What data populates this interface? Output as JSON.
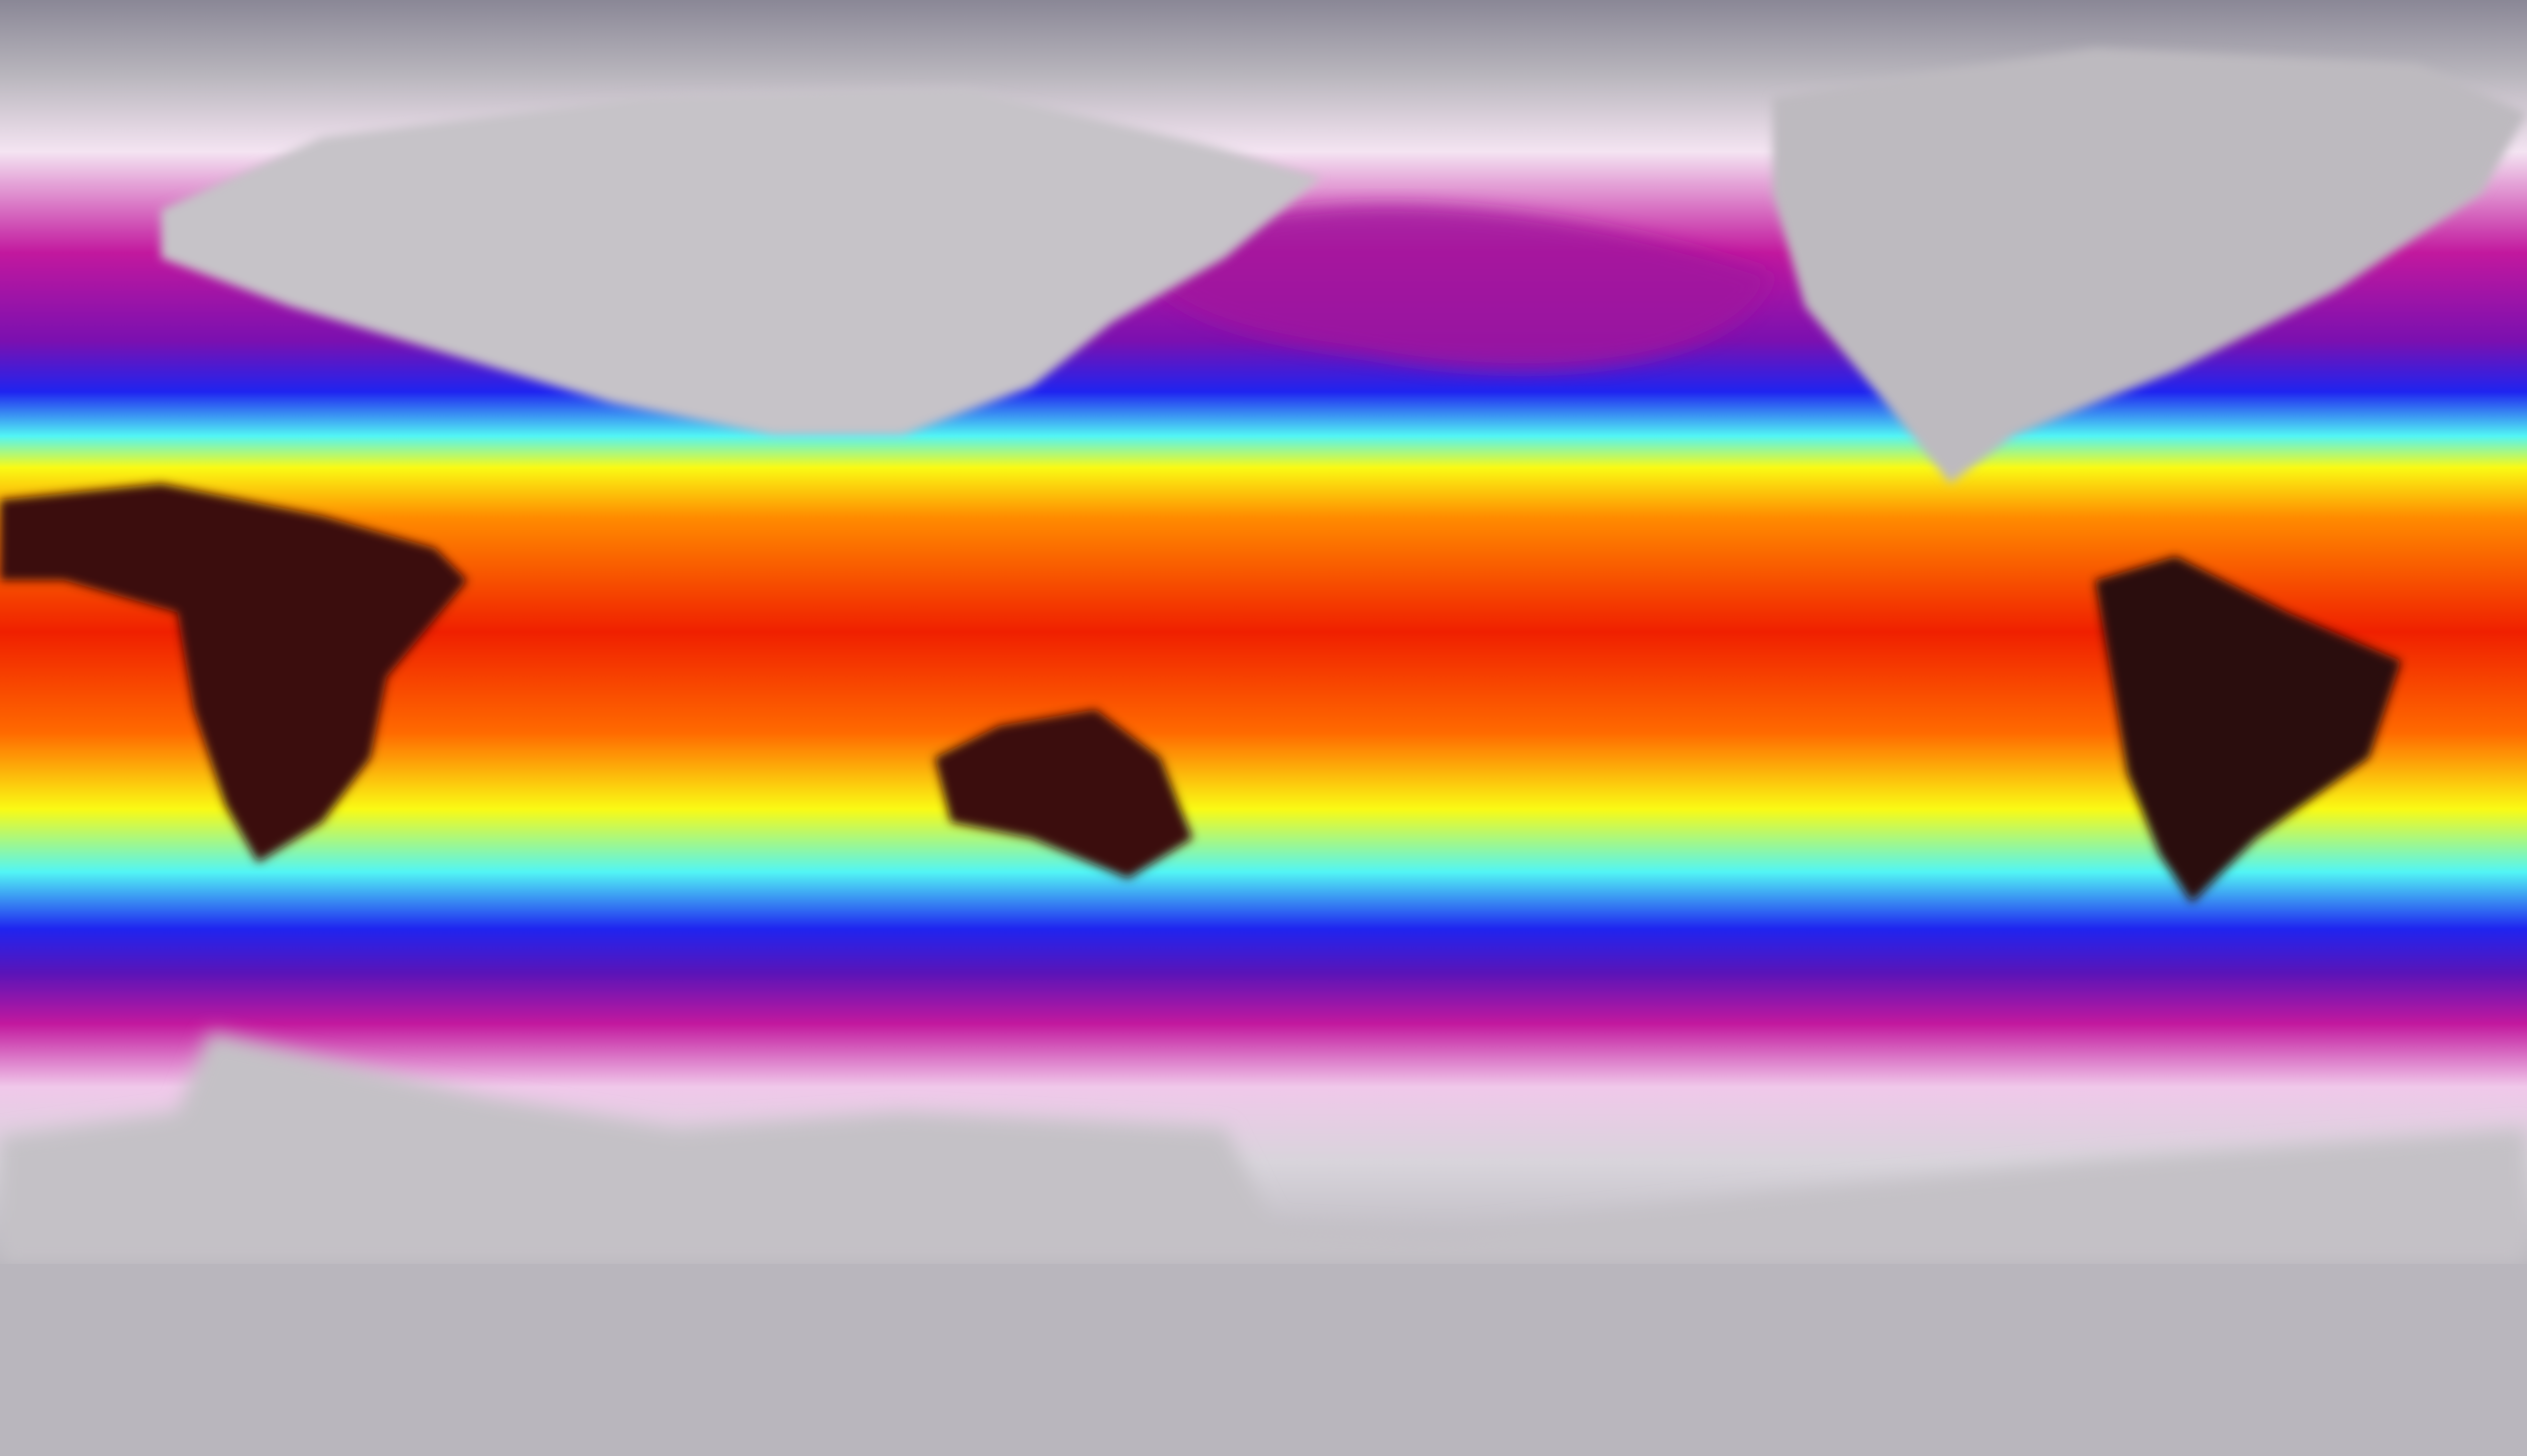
{
  "map": {
    "projection": "equirectangular",
    "variable": "temperature",
    "palette": {
      "coldest": "#b9b6bd",
      "cold_pale": "#f6dcf3",
      "cold_magenta": "#c2189e",
      "cool_purple": "#5a14b8",
      "cool_blue": "#1f24f0",
      "cyan": "#52f5f5",
      "yellow": "#fafa14",
      "orange": "#ff8a00",
      "red": "#f02000",
      "hottest": "#2a0a08"
    }
  }
}
